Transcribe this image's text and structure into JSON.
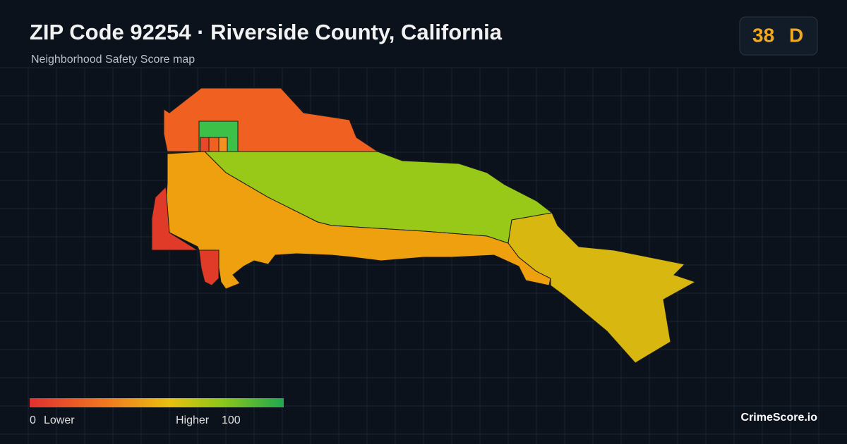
{
  "header": {
    "title": "ZIP Code 92254 · Riverside County, California",
    "subtitle": "Neighborhood Safety Score map"
  },
  "score": {
    "value": "38",
    "grade": "D"
  },
  "legend": {
    "min": "0",
    "min_label": "Lower",
    "max_label": "Higher",
    "max": "100"
  },
  "brand": "CrimeScore.io"
}
